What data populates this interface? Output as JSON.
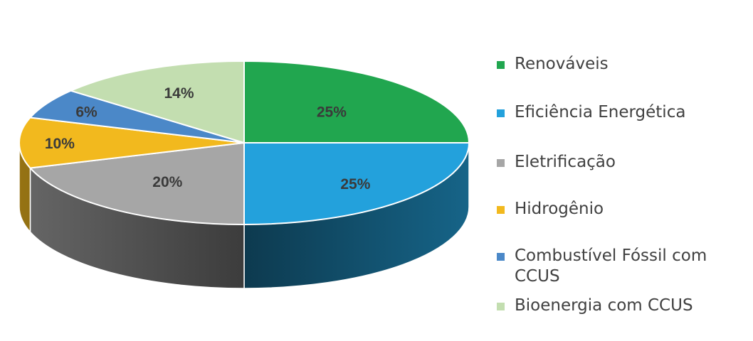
{
  "chart_data": {
    "type": "pie",
    "style": "3d-oblique",
    "legend_position": "right",
    "categories": [
      "Renováveis",
      "Eficiência Energética",
      "Eletrificação",
      "Hidrogênio",
      "Combustível Fóssil com CCUS",
      "Bioenergia com CCUS"
    ],
    "values": [
      25,
      25,
      20,
      10,
      6,
      14
    ],
    "labels": [
      "25%",
      "25%",
      "20%",
      "10%",
      "6%",
      "14%"
    ],
    "colors": [
      "#21a64f",
      "#23a1dc",
      "#a6a6a6",
      "#f2b91e",
      "#4b88c8",
      "#c3deb0"
    ]
  }
}
